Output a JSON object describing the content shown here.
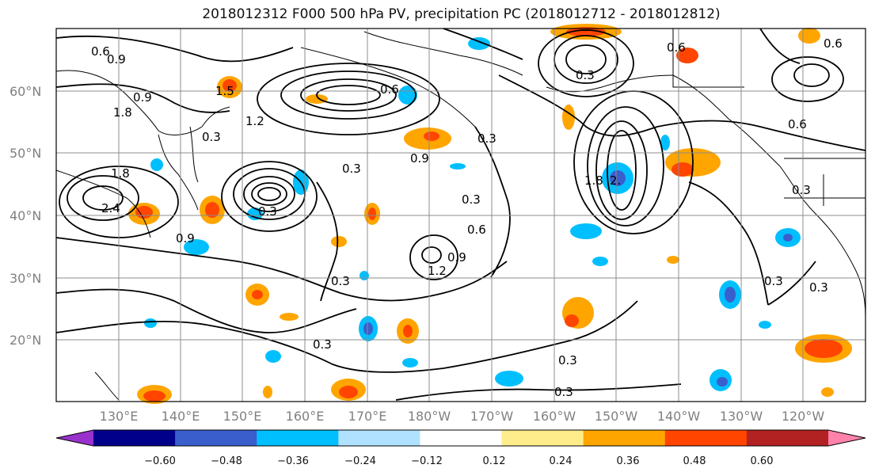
{
  "title": "2018012312 F000 500 hPa PV, precipitation PC (2018012712 - 2018012812)",
  "map": {
    "lat_labels": [
      "60°N",
      "50°N",
      "40°N",
      "30°N",
      "20°N"
    ],
    "lon_labels": [
      "130°E",
      "140°E",
      "150°E",
      "160°E",
      "170°E",
      "180°W",
      "170°W",
      "160°W",
      "150°W",
      "140°W",
      "130°W",
      "120°W"
    ],
    "contour_labels": [
      "0.6",
      "0.9",
      "1.8",
      "1.2",
      "0.3",
      "1.5",
      "0.9",
      "0.6",
      "0.3",
      "0.3",
      "0.9",
      "0.3",
      "0.6",
      "0.3",
      "0.9",
      "1.2",
      "0.3",
      "0.3",
      "0.3",
      "0.3",
      "0.3",
      "2.",
      "1.8",
      "0.6",
      "0.6",
      "0.3",
      "0.3",
      "0.6",
      "0.3",
      "1.8",
      "2.4",
      "0.9"
    ]
  },
  "colorbar": {
    "colors": [
      "#9932cc",
      "#00008b",
      "#3a5fcd",
      "#00bfff",
      "#b0e2ff",
      "#ffffff",
      "#ffec8b",
      "#ffa500",
      "#ff4500",
      "#b22222",
      "#ff82ab"
    ],
    "ticks": [
      "−0.60",
      "−0.48",
      "−0.36",
      "−0.24",
      "−0.12",
      "0.12",
      "0.24",
      "0.36",
      "0.48",
      "0.60"
    ]
  }
}
